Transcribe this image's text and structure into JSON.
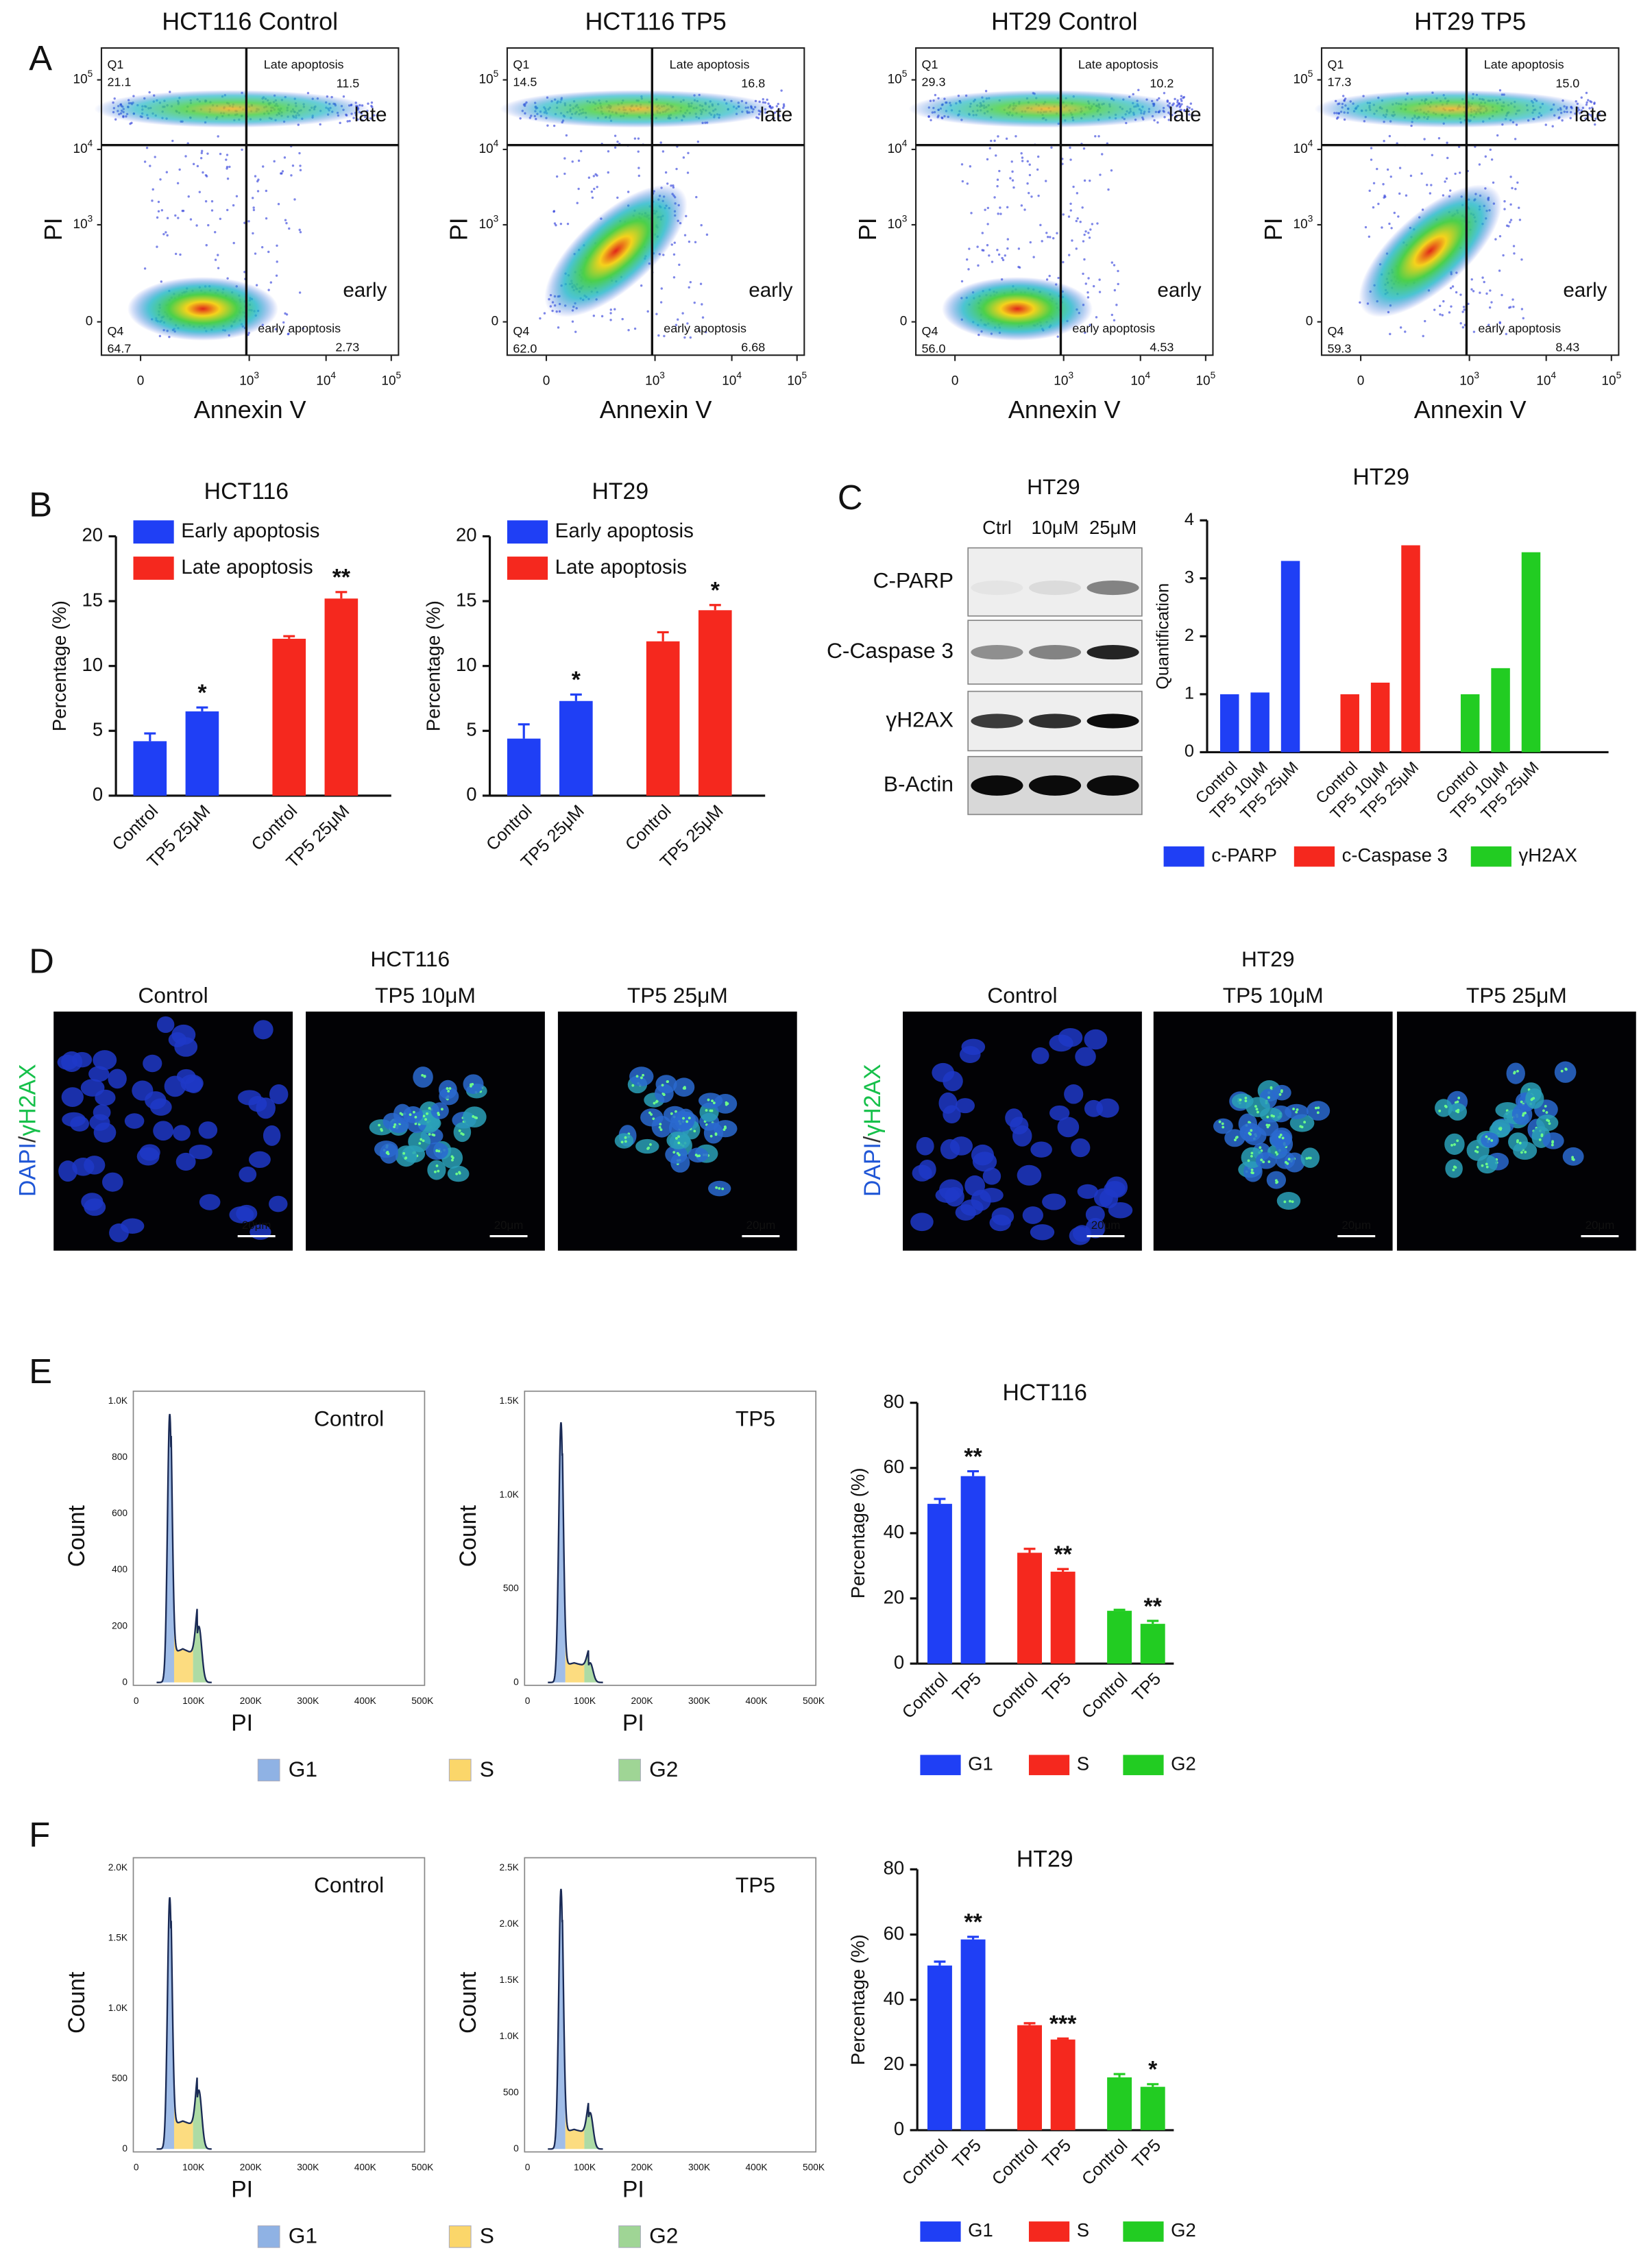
{
  "labels": [
    "A",
    "B",
    "C",
    "D",
    "E",
    "F"
  ],
  "flow": {
    "xlabel": "Annexin V",
    "ylabel": "PI",
    "yticks": [
      {
        "base": "10",
        "exp": "5"
      },
      {
        "base": "10",
        "exp": "4"
      },
      {
        "base": "10",
        "exp": "3"
      },
      {
        "base": "0"
      }
    ],
    "xticks": [
      {
        "base": "0"
      },
      {
        "base": "10",
        "exp": "3"
      },
      {
        "base": "10",
        "exp": "4"
      },
      {
        "base": "10",
        "exp": "5"
      }
    ],
    "quadrants": {
      "q1": "Q1",
      "q2": "Late apoptosis",
      "q3": "early apoptosis",
      "q4": "Q4",
      "late": "late",
      "early": "early"
    },
    "plots": [
      {
        "title": "HCT116 Control",
        "q1": "21.1",
        "q2": "11.5",
        "q3": "2.73",
        "q4": "64.7"
      },
      {
        "title": "HCT116 TP5",
        "q1": "14.5",
        "q2": "16.8",
        "q3": "6.68",
        "q4": "62.0"
      },
      {
        "title": "HT29 Control",
        "q1": "29.3",
        "q2": "10.2",
        "q3": "4.53",
        "q4": "56.0"
      },
      {
        "title": "HT29 TP5",
        "q1": "17.3",
        "q2": "15.0",
        "q3": "8.43",
        "q4": "59.3"
      }
    ]
  },
  "blot": {
    "title": "HT29",
    "lanes": [
      "Ctrl",
      "10μM",
      "25μM"
    ],
    "rows": [
      "C-PARP",
      "C-Caspase 3",
      "γH2AX",
      "B-Actin"
    ]
  },
  "imaging": {
    "side_label": {
      "a": "DAPI",
      "b": "/",
      "c": "γH2AX"
    },
    "scale_bar": "20μm",
    "groups": [
      {
        "title": "HCT116",
        "images": [
          "Control",
          "TP5 10μM",
          "TP5 25μM"
        ]
      },
      {
        "title": "HT29",
        "images": [
          "Control",
          "TP5 10μM",
          "TP5 25μM"
        ]
      }
    ]
  },
  "cycle": {
    "xlabel": "PI",
    "ylabel": "Count",
    "xticks": [
      "0",
      "100K",
      "200K",
      "300K",
      "400K",
      "500K"
    ],
    "legend": [
      {
        "name": "G1",
        "color": "#8fb2e4"
      },
      {
        "name": "S",
        "color": "#fbd66a"
      },
      {
        "name": "G2",
        "color": "#9fd595"
      }
    ],
    "panels": [
      {
        "hists": [
          {
            "label": "Control",
            "yticks": [
              "1.0K",
              "800",
              "600",
              "400",
              "200",
              "0"
            ]
          },
          {
            "label": "TP5",
            "yticks": [
              "1.5K",
              "1.0K",
              "500",
              "0"
            ]
          }
        ]
      },
      {
        "hists": [
          {
            "label": "Control",
            "yticks": [
              "2.0K",
              "1.5K",
              "1.0K",
              "500",
              "0"
            ]
          },
          {
            "label": "TP5",
            "yticks": [
              "2.5K",
              "2.0K",
              "1.5K",
              "1.0K",
              "500",
              "0"
            ]
          }
        ]
      }
    ]
  },
  "chart_data": [
    {
      "type": "bar",
      "title": "HCT116",
      "ylabel": "Percentage (%)",
      "ylim": [
        0,
        20
      ],
      "yticks": [
        0,
        5,
        10,
        15,
        20
      ],
      "categories": [
        "Control",
        "TP5 25μM"
      ],
      "legend": "top-left",
      "series": [
        {
          "name": "Early apoptosis",
          "color": "#1f3ff5",
          "values": [
            4.2,
            6.5
          ],
          "errors": [
            0.6,
            0.3
          ],
          "annotations": [
            null,
            "*"
          ]
        },
        {
          "name": "Late apoptosis",
          "color": "#f5281e",
          "values": [
            12.1,
            15.2
          ],
          "errors": [
            0.2,
            0.5
          ],
          "annotations": [
            null,
            "**"
          ]
        }
      ]
    },
    {
      "type": "bar",
      "title": "HT29",
      "ylabel": "Percentage (%)",
      "ylim": [
        0,
        20
      ],
      "yticks": [
        0,
        5,
        10,
        15,
        20
      ],
      "categories": [
        "Control",
        "TP5 25μM"
      ],
      "legend": "top-left",
      "series": [
        {
          "name": "Early apoptosis",
          "color": "#1f3ff5",
          "values": [
            4.4,
            7.3
          ],
          "errors": [
            1.1,
            0.5
          ],
          "annotations": [
            null,
            "*"
          ]
        },
        {
          "name": "Late apoptosis",
          "color": "#f5281e",
          "values": [
            11.9,
            14.3
          ],
          "errors": [
            0.7,
            0.4
          ],
          "annotations": [
            null,
            "*"
          ]
        }
      ]
    },
    {
      "type": "bar",
      "title": "HT29",
      "ylabel": "Quantification",
      "ylim": [
        0,
        4
      ],
      "yticks": [
        0,
        1,
        2,
        3,
        4
      ],
      "categories": [
        "Control",
        "TP5 10μM",
        "TP5 25μM"
      ],
      "legend": "bottom",
      "series": [
        {
          "name": "c-PARP",
          "color": "#1f3ff5",
          "values": [
            1,
            1.03,
            3.3
          ]
        },
        {
          "name": "c-Caspase 3",
          "color": "#f5281e",
          "values": [
            1,
            1.2,
            3.57
          ]
        },
        {
          "name": "γH2AX",
          "color": "#22cc22",
          "values": [
            1,
            1.45,
            3.45
          ]
        }
      ]
    },
    {
      "type": "bar",
      "title": "HCT116",
      "ylabel": "Percentage (%)",
      "ylim": [
        0,
        80
      ],
      "yticks": [
        0,
        20,
        40,
        60,
        80
      ],
      "categories": [
        "Control",
        "TP5"
      ],
      "legend": "bottom",
      "series": [
        {
          "name": "G1",
          "color": "#1f3ff5",
          "values": [
            49,
            57.5
          ],
          "errors": [
            1.5,
            1.5
          ],
          "annotations": [
            null,
            "**"
          ]
        },
        {
          "name": "S",
          "color": "#f5281e",
          "values": [
            34,
            28.2
          ],
          "errors": [
            1.2,
            0.8
          ],
          "annotations": [
            null,
            "**"
          ]
        },
        {
          "name": "G2",
          "color": "#22cc22",
          "values": [
            16.2,
            12.2
          ],
          "errors": [
            0.3,
            0.9
          ],
          "annotations": [
            null,
            "**"
          ]
        }
      ]
    },
    {
      "type": "bar",
      "title": "HT29",
      "ylabel": "Percentage (%)",
      "ylim": [
        0,
        80
      ],
      "yticks": [
        0,
        20,
        40,
        60,
        80
      ],
      "categories": [
        "Control",
        "TP5"
      ],
      "legend": "bottom",
      "series": [
        {
          "name": "G1",
          "color": "#1f3ff5",
          "values": [
            50.5,
            58.5
          ],
          "errors": [
            1.2,
            0.8
          ],
          "annotations": [
            null,
            "**"
          ]
        },
        {
          "name": "S",
          "color": "#f5281e",
          "values": [
            32.2,
            27.8
          ],
          "errors": [
            0.6,
            0.3
          ],
          "annotations": [
            null,
            "***"
          ]
        },
        {
          "name": "G2",
          "color": "#22cc22",
          "values": [
            16.2,
            13.3
          ],
          "errors": [
            1,
            0.8
          ],
          "annotations": [
            null,
            "*"
          ]
        }
      ]
    }
  ]
}
